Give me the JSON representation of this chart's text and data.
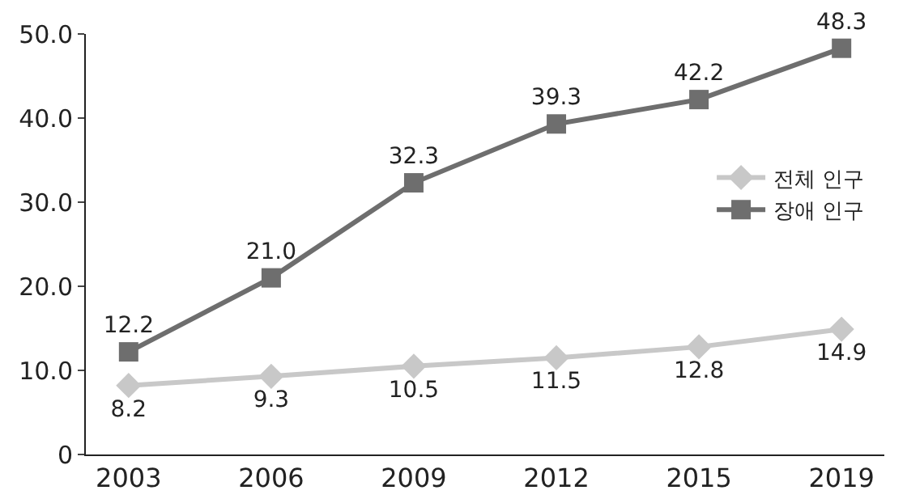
{
  "chart_data": {
    "type": "line",
    "categories": [
      "2003",
      "2006",
      "2009",
      "2012",
      "2015",
      "2019"
    ],
    "series": [
      {
        "name": "전체 인구",
        "color": "#c8c8c8",
        "marker": "diamond",
        "values": [
          8.2,
          9.3,
          10.5,
          11.5,
          12.8,
          14.9
        ],
        "value_labels": [
          "8.2",
          "9.3",
          "10.5",
          "11.5",
          "12.8",
          "14.9"
        ]
      },
      {
        "name": "장애 인구",
        "color": "#6e6e6e",
        "marker": "square",
        "values": [
          12.2,
          21.0,
          32.3,
          39.3,
          42.2,
          48.3
        ],
        "value_labels": [
          "12.2",
          "21.0",
          "32.3",
          "39.3",
          "42.2",
          "48.3"
        ]
      }
    ],
    "ylim": [
      0,
      50
    ],
    "yticks": [
      0,
      {
        "value": 10,
        "label": "10.0"
      },
      {
        "value": 20,
        "label": "20.0"
      },
      {
        "value": 30,
        "label": "30.0"
      },
      {
        "value": 40,
        "label": "40.0"
      },
      {
        "value": 50,
        "label": "50.0"
      }
    ],
    "grid": false,
    "legend": "right",
    "line_style": "solid"
  }
}
